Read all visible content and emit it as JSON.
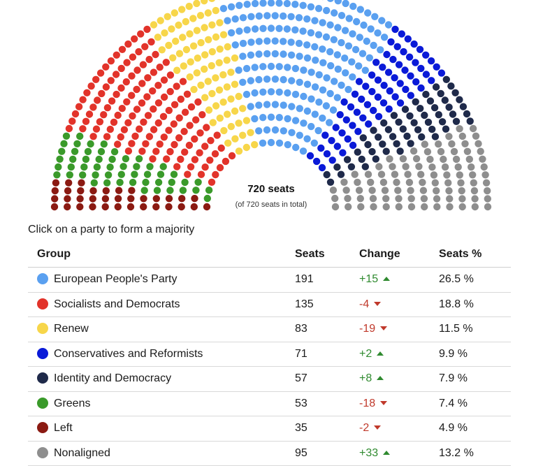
{
  "chart_data": {
    "type": "parliament",
    "total_label": "720 seats",
    "total_sub": "(of 720 seats in total)",
    "total": 720,
    "parties": [
      {
        "name": "Left",
        "seats": 35,
        "color": "#8b1a12"
      },
      {
        "name": "Greens",
        "seats": 53,
        "color": "#3a9a2a"
      },
      {
        "name": "Socialists and Democrats",
        "seats": 135,
        "color": "#e2332a"
      },
      {
        "name": "Renew",
        "seats": 83,
        "color": "#f7d64a"
      },
      {
        "name": "European People's Party",
        "seats": 191,
        "color": "#5aa0f0"
      },
      {
        "name": "Conservatives and Reformists",
        "seats": 71,
        "color": "#0a1ad8"
      },
      {
        "name": "Identity and Democracy",
        "seats": 57,
        "color": "#1f2a4a"
      },
      {
        "name": "Nonaligned",
        "seats": 95,
        "color": "#8e8e8e"
      }
    ]
  },
  "instruction": "Click on a party to form a majority",
  "table": {
    "headers": [
      "Group",
      "Seats",
      "Change",
      "Seats %"
    ],
    "rows": [
      {
        "group": "European People's Party",
        "color": "#5aa0f0",
        "seats": "191",
        "change": "+15",
        "dir": "up",
        "pct": "26.5 %"
      },
      {
        "group": "Socialists and Democrats",
        "color": "#e2332a",
        "seats": "135",
        "change": "-4",
        "dir": "down",
        "pct": "18.8 %"
      },
      {
        "group": "Renew",
        "color": "#f7d64a",
        "seats": "83",
        "change": "-19",
        "dir": "down",
        "pct": "11.5 %"
      },
      {
        "group": "Conservatives and Reformists",
        "color": "#0a1ad8",
        "seats": "71",
        "change": "+2",
        "dir": "up",
        "pct": "9.9 %"
      },
      {
        "group": "Identity and Democracy",
        "color": "#1f2a4a",
        "seats": "57",
        "change": "+8",
        "dir": "up",
        "pct": "7.9 %"
      },
      {
        "group": "Greens",
        "color": "#3a9a2a",
        "seats": "53",
        "change": "-18",
        "dir": "down",
        "pct": "7.4 %"
      },
      {
        "group": "Left",
        "color": "#8b1a12",
        "seats": "35",
        "change": "-2",
        "dir": "down",
        "pct": "4.9 %"
      },
      {
        "group": "Nonaligned",
        "color": "#8e8e8e",
        "seats": "95",
        "change": "+33",
        "dir": "up",
        "pct": "13.2 %"
      }
    ]
  }
}
